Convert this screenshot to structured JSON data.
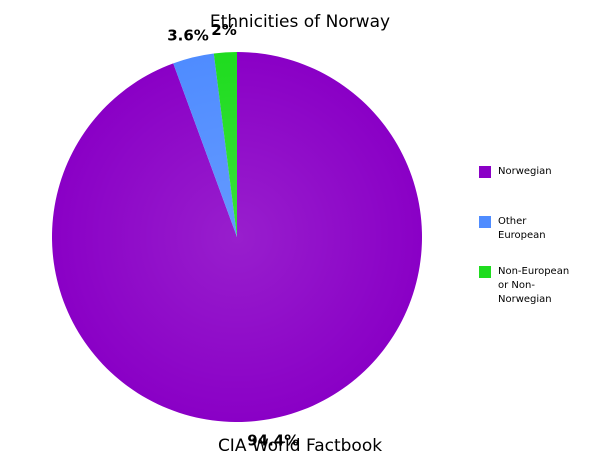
{
  "chart_data": {
    "type": "pie",
    "title": "Ethnicities of Norway",
    "subtitle": "CIA World Factbook",
    "categories": [
      "Norwegian",
      "Other European",
      "Non-European or Non-Norwegian"
    ],
    "values": [
      94.4,
      3.6,
      2
    ],
    "value_labels": [
      "94.4%",
      "3.6%",
      "2%"
    ],
    "colors": [
      "#8a00c6",
      "#4f8cff",
      "#1fdc1f"
    ],
    "legend": "right"
  }
}
